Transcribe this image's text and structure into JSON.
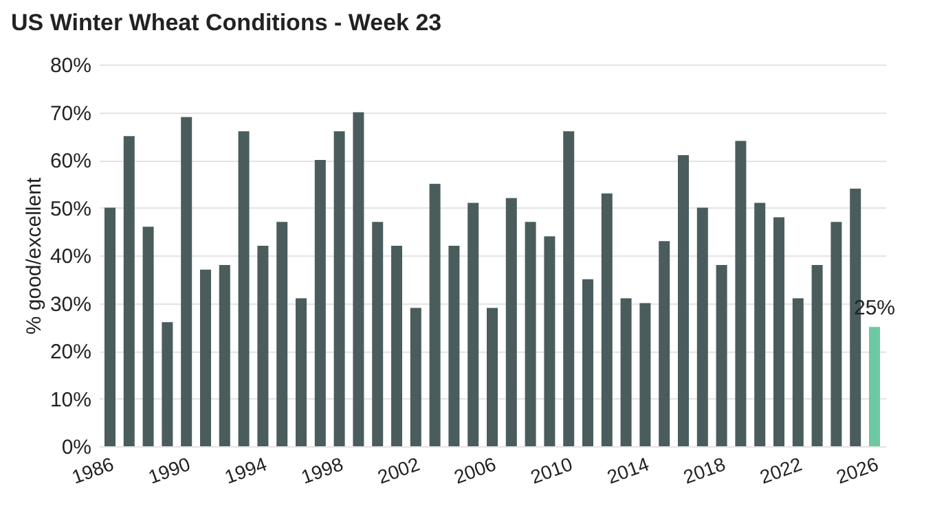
{
  "chart_data": {
    "type": "bar",
    "title": "US Winter Wheat Conditions - Week 23",
    "ylabel": "% good/excellent",
    "categories": [
      "1986",
      null,
      null,
      null,
      "1990",
      null,
      null,
      null,
      "1994",
      null,
      null,
      null,
      "1998",
      null,
      null,
      null,
      "2002",
      null,
      null,
      null,
      "2006",
      null,
      null,
      null,
      "2010",
      null,
      null,
      null,
      "2014",
      null,
      null,
      null,
      "2018",
      null,
      null,
      null,
      "2022",
      null,
      null,
      null,
      "2026"
    ],
    "values": [
      50,
      65,
      46,
      26,
      69,
      37,
      38,
      66,
      42,
      47,
      31,
      60,
      66,
      70,
      47,
      42,
      29,
      55,
      42,
      51,
      29,
      52,
      47,
      44,
      66,
      35,
      53,
      31,
      30,
      43,
      61,
      50,
      38,
      64,
      51,
      48,
      31,
      38,
      47,
      54,
      25
    ],
    "colors": [
      "#4a5c5c",
      "#4a5c5c",
      "#4a5c5c",
      "#4a5c5c",
      "#4a5c5c",
      "#4a5c5c",
      "#4a5c5c",
      "#4a5c5c",
      "#4a5c5c",
      "#4a5c5c",
      "#4a5c5c",
      "#4a5c5c",
      "#4a5c5c",
      "#4a5c5c",
      "#4a5c5c",
      "#4a5c5c",
      "#4a5c5c",
      "#4a5c5c",
      "#4a5c5c",
      "#4a5c5c",
      "#4a5c5c",
      "#4a5c5c",
      "#4a5c5c",
      "#4a5c5c",
      "#4a5c5c",
      "#4a5c5c",
      "#4a5c5c",
      "#4a5c5c",
      "#4a5c5c",
      "#4a5c5c",
      "#4a5c5c",
      "#4a5c5c",
      "#4a5c5c",
      "#4a5c5c",
      "#4a5c5c",
      "#4a5c5c",
      "#4a5c5c",
      "#4a5c5c",
      "#4a5c5c",
      "#4a5c5c",
      "#6cc9a3"
    ],
    "value_labels": [
      null,
      null,
      null,
      null,
      null,
      null,
      null,
      null,
      null,
      null,
      null,
      null,
      null,
      null,
      null,
      null,
      null,
      null,
      null,
      null,
      null,
      null,
      null,
      null,
      null,
      null,
      null,
      null,
      null,
      null,
      null,
      null,
      null,
      null,
      null,
      null,
      null,
      null,
      null,
      null,
      "25%"
    ],
    "ylim": [
      0,
      80
    ],
    "yticks": [
      {
        "value": 0,
        "label": "0%"
      },
      {
        "value": 10,
        "label": "10%"
      },
      {
        "value": 20,
        "label": "20%"
      },
      {
        "value": 30,
        "label": "30%"
      },
      {
        "value": 40,
        "label": "40%"
      },
      {
        "value": 50,
        "label": "50%"
      },
      {
        "value": 60,
        "label": "60%"
      },
      {
        "value": 70,
        "label": "70%"
      },
      {
        "value": 80,
        "label": "80%"
      }
    ],
    "grid": "y"
  }
}
